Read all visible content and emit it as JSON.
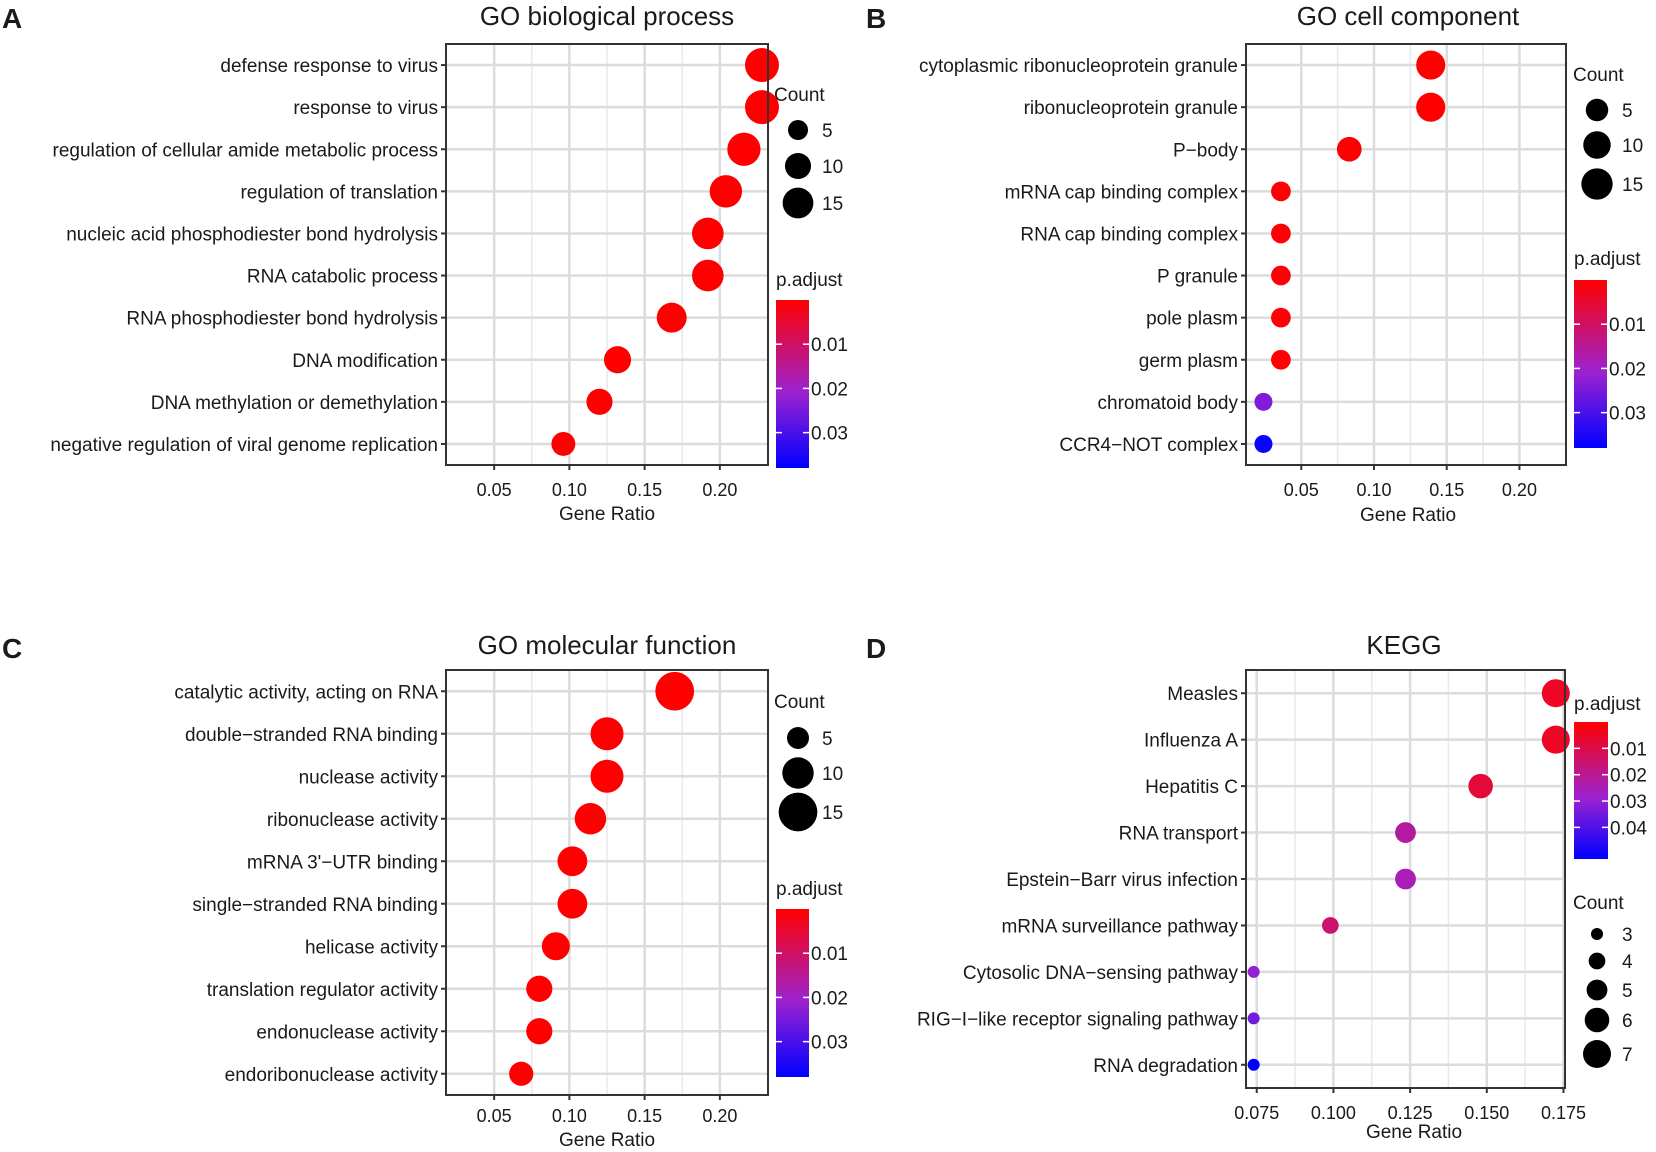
{
  "chart_data": [
    {
      "panel": "A",
      "type": "scatter",
      "title": "GO biological process",
      "xlabel": "Gene Ratio",
      "ylabel": "",
      "xlim": [
        0.018,
        0.232
      ],
      "xticks": [
        0.05,
        0.1,
        0.15,
        0.2
      ],
      "xtick_labels": [
        "0.05",
        "0.10",
        "0.15",
        "0.20"
      ],
      "grid": true,
      "categories": [
        "defense response to virus",
        "response to virus",
        "regulation of cellular amide metabolic process",
        "regulation of translation",
        "nucleic acid phosphodiester bond hydrolysis",
        "RNA catabolic process",
        "RNA phosphodiester bond hydrolysis",
        "DNA modification",
        "DNA methylation or demethylation",
        "negative regulation of viral genome replication"
      ],
      "x": [
        0.228,
        0.228,
        0.216,
        0.204,
        0.192,
        0.192,
        0.168,
        0.132,
        0.12,
        0.096
      ],
      "count": [
        19,
        19,
        18,
        17,
        16,
        16,
        14,
        11,
        10,
        8
      ],
      "p_adjust": [
        0.0001,
        0.0001,
        0.0001,
        0.0001,
        0.0001,
        0.0001,
        0.0001,
        0.0001,
        0.0001,
        0.0001
      ],
      "size_legend": {
        "title": "Count",
        "values": [
          5,
          10,
          15
        ],
        "labels": [
          "5",
          "10",
          "15"
        ]
      },
      "color_legend": {
        "title": "p.adjust",
        "min": 0.0,
        "max": 0.038,
        "ticks": [
          0.01,
          0.02,
          0.03
        ],
        "labels": [
          "0.01",
          "0.02",
          "0.03"
        ],
        "low_color": "#ff0000",
        "mid_color": "#9c22d0",
        "high_color": "#0000ff"
      }
    },
    {
      "panel": "B",
      "type": "scatter",
      "title": "GO cell component",
      "xlabel": "Gene Ratio",
      "ylabel": "",
      "xlim": [
        0.012,
        0.232
      ],
      "xticks": [
        0.05,
        0.1,
        0.15,
        0.2
      ],
      "xtick_labels": [
        "0.05",
        "0.10",
        "0.15",
        "0.20"
      ],
      "grid": true,
      "categories": [
        "cytoplasmic ribonucleoprotein granule",
        "ribonucleoprotein granule",
        "P−body",
        "mRNA cap binding complex",
        "RNA cap binding complex",
        "P granule",
        "pole plasm",
        "germ plasm",
        "chromatoid body",
        "CCR4−NOT complex"
      ],
      "x": [
        0.139,
        0.139,
        0.083,
        0.036,
        0.036,
        0.036,
        0.036,
        0.036,
        0.024,
        0.024
      ],
      "count": [
        12,
        12,
        7,
        3,
        3,
        3,
        3,
        3,
        2,
        2
      ],
      "p_adjust": [
        0.0001,
        0.0001,
        0.0001,
        0.0005,
        0.0005,
        0.0005,
        0.0005,
        0.0005,
        0.024,
        0.037
      ],
      "size_legend": {
        "title": "Count",
        "values": [
          5,
          10,
          15
        ],
        "labels": [
          "5",
          "10",
          "15"
        ]
      },
      "color_legend": {
        "title": "p.adjust",
        "min": 0.0,
        "max": 0.038,
        "ticks": [
          0.01,
          0.02,
          0.03
        ],
        "labels": [
          "0.01",
          "0.02",
          "0.03"
        ],
        "low_color": "#ff0000",
        "mid_color": "#9c22d0",
        "high_color": "#0000ff"
      }
    },
    {
      "panel": "C",
      "type": "scatter",
      "title": "GO molecular function",
      "xlabel": "Gene Ratio",
      "ylabel": "",
      "xlim": [
        0.018,
        0.232
      ],
      "xticks": [
        0.05,
        0.1,
        0.15,
        0.2
      ],
      "xtick_labels": [
        "0.05",
        "0.10",
        "0.15",
        "0.20"
      ],
      "grid": true,
      "categories": [
        "catalytic activity, acting on RNA",
        "double−stranded RNA binding",
        "nuclease activity",
        "ribonuclease activity",
        "mRNA 3'−UTR binding",
        "single−stranded RNA binding",
        "helicase activity",
        "translation regulator activity",
        "endonuclease activity",
        "endoribonuclease activity"
      ],
      "x": [
        0.17,
        0.125,
        0.125,
        0.114,
        0.102,
        0.102,
        0.091,
        0.08,
        0.08,
        0.068
      ],
      "count": [
        15,
        11,
        11,
        10,
        9,
        9,
        8,
        7,
        7,
        6
      ],
      "p_adjust": [
        0.0001,
        0.0001,
        0.0001,
        0.0001,
        0.0001,
        0.0001,
        0.0001,
        0.0001,
        0.0001,
        0.0001
      ],
      "size_legend": {
        "title": "Count",
        "values": [
          5,
          10,
          15
        ],
        "labels": [
          "5",
          "10",
          "15"
        ]
      },
      "color_legend": {
        "title": "p.adjust",
        "min": 0.0,
        "max": 0.038,
        "ticks": [
          0.01,
          0.02,
          0.03
        ],
        "labels": [
          "0.01",
          "0.02",
          "0.03"
        ],
        "low_color": "#ff0000",
        "mid_color": "#9c22d0",
        "high_color": "#0000ff"
      }
    },
    {
      "panel": "D",
      "type": "scatter",
      "title": "KEGG",
      "xlabel": "Gene Ratio",
      "ylabel": "",
      "xlim": [
        0.0715,
        0.1755
      ],
      "xticks": [
        0.075,
        0.1,
        0.125,
        0.15,
        0.175
      ],
      "xtick_labels": [
        "0.075",
        "0.100",
        "0.125",
        "0.150",
        "0.175"
      ],
      "grid": true,
      "categories": [
        "Measles",
        "Influenza A",
        "Hepatitis C",
        "RNA transport",
        "Epstein−Barr virus infection",
        "mRNA surveillance pathway",
        "Cytosolic DNA−sensing pathway",
        "RIG−I−like receptor signaling pathway",
        "RNA degradation"
      ],
      "x": [
        0.1725,
        0.1725,
        0.148,
        0.1235,
        0.1235,
        0.099,
        0.074,
        0.074,
        0.074
      ],
      "count": [
        7,
        7,
        6,
        5,
        5,
        4,
        3,
        3,
        3
      ],
      "p_adjust": [
        0.005,
        0.005,
        0.008,
        0.022,
        0.025,
        0.015,
        0.03,
        0.035,
        0.052
      ],
      "size_legend": {
        "title": "Count",
        "values": [
          3,
          4,
          5,
          6,
          7
        ],
        "labels": [
          "3",
          "4",
          "5",
          "6",
          "7"
        ]
      },
      "color_legend": {
        "title": "p.adjust",
        "min": 0.0,
        "max": 0.052,
        "ticks": [
          0.01,
          0.02,
          0.03,
          0.04
        ],
        "labels": [
          "0.01",
          "0.02",
          "0.03",
          "0.04"
        ],
        "low_color": "#ff0000",
        "mid_color": "#9c22d0",
        "high_color": "#0000ff"
      }
    }
  ]
}
